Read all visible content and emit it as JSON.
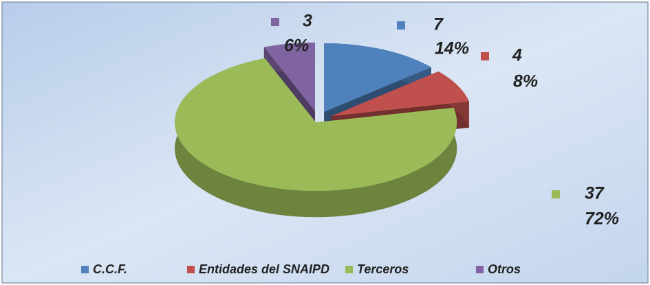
{
  "chart_data": {
    "type": "pie",
    "categories": [
      "C.C.F.",
      "Entidades del SNAIPD",
      "Terceros",
      "Otros"
    ],
    "values": [
      7,
      4,
      37,
      3
    ],
    "percent_labels": [
      "14%",
      "8%",
      "72%",
      "6%"
    ],
    "colors": [
      "#4f81bd",
      "#c0504d",
      "#9bbb59",
      "#8064a2"
    ],
    "legend": "bottom"
  }
}
